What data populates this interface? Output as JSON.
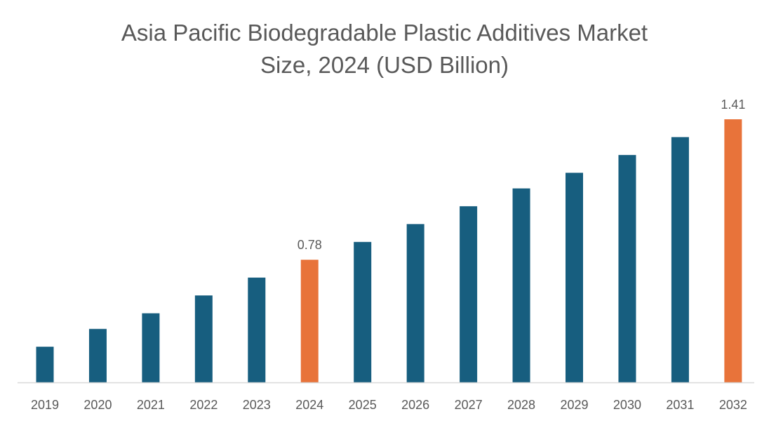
{
  "chart_data": {
    "type": "bar",
    "title_line1": "Asia Pacific Biodegradable Plastic Additives Market",
    "title_line2": "Size, 2024 (USD Billion)",
    "xlabel": "",
    "ylabel": "",
    "categories": [
      "2019",
      "2020",
      "2021",
      "2022",
      "2023",
      "2024",
      "2025",
      "2026",
      "2027",
      "2028",
      "2029",
      "2030",
      "2031",
      "2032"
    ],
    "values": [
      0.39,
      0.47,
      0.54,
      0.62,
      0.7,
      0.78,
      0.86,
      0.94,
      1.02,
      1.1,
      1.17,
      1.25,
      1.33,
      1.41
    ],
    "data_labels": {
      "2024": "0.78",
      "2032": "1.41"
    },
    "highlight": [
      "2024",
      "2032"
    ],
    "ylim": [
      0.23,
      1.41
    ],
    "grid": false,
    "legend": "none",
    "colors": {
      "bar": "#175e7f",
      "highlight": "#e8733a",
      "axis": "#d9d9d9",
      "text": "#595959"
    }
  }
}
